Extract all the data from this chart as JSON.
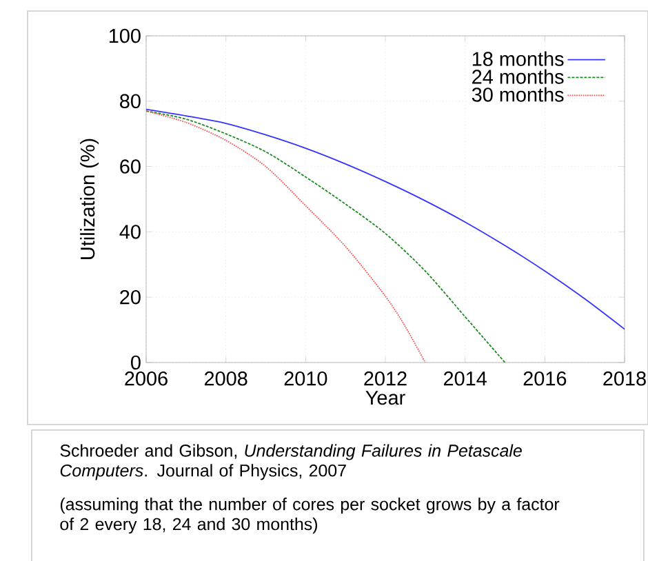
{
  "chart_data": {
    "type": "line",
    "xlabel": "Year",
    "ylabel": "Utilization (%)",
    "x": [
      2006,
      2007,
      2008,
      2009,
      2010,
      2011,
      2012,
      2013,
      2014,
      2015,
      2016,
      2017,
      2018
    ],
    "series": [
      {
        "name": "18 months",
        "color": "#3333ff",
        "line_style": "solid",
        "values": [
          77.5,
          75.5,
          73.2,
          69.7,
          65.6,
          60.8,
          55.4,
          49.5,
          43,
          35.8,
          28,
          19.5,
          10.2
        ]
      },
      {
        "name": "24 months",
        "color": "#1a8a1a",
        "line_style": "dashed",
        "x": [
          2006,
          2007,
          2008,
          2009,
          2010,
          2011,
          2012,
          2013,
          2014,
          2014.5,
          2015
        ],
        "values": [
          77,
          74.5,
          70,
          64.5,
          56.8,
          48.5,
          39.5,
          28,
          14,
          7,
          0
        ]
      },
      {
        "name": "30 months",
        "color": "#ff4040",
        "line_style": "dotted",
        "x": [
          2006,
          2007,
          2008,
          2009,
          2010,
          2011,
          2012,
          2012.5,
          2013
        ],
        "values": [
          77,
          73.5,
          68,
          60,
          48,
          35.5,
          20.3,
          11,
          0
        ]
      }
    ],
    "xlim": [
      2006,
      2018
    ],
    "ylim": [
      0,
      100
    ],
    "xticks": [
      2006,
      2008,
      2010,
      2012,
      2014,
      2016,
      2018
    ],
    "yticks": [
      0,
      20,
      40,
      60,
      80,
      100
    ],
    "grid": true,
    "legend": "top right",
    "marker": "none",
    "annotations": [
      "Schroeder and Gibson, *Understanding Failures in Petascale Computers*.  Journal of Physics, 2007",
      "(assuming that the number of cores per socket grows by a factor of 2 every 18, 24 and 30 months)"
    ]
  }
}
